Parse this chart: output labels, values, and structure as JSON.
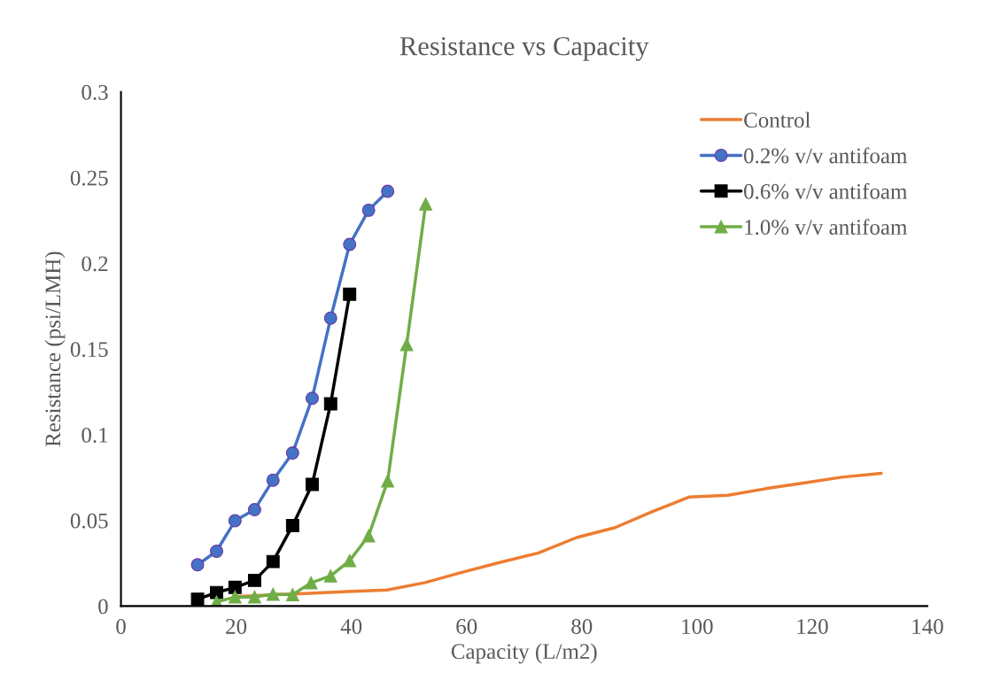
{
  "chart_data": {
    "type": "line",
    "title": "Resistance vs Capacity",
    "xlabel": "Capacity (L/m2)",
    "ylabel": "Resistance (psi/LMH)",
    "xlim": [
      0,
      140
    ],
    "xticks": [
      0,
      20,
      40,
      60,
      80,
      100,
      120,
      140
    ],
    "ylim": [
      0,
      0.3
    ],
    "yticks": [
      0,
      0.05,
      0.1,
      0.15,
      0.2,
      0.25,
      0.3
    ],
    "grid": false,
    "legend": "top right",
    "series": [
      {
        "name": "Control",
        "color": "#ed7d31",
        "marker": "none",
        "x": [
          19.6,
          26.1,
          32.7,
          39.3,
          46.2,
          52.8,
          59.3,
          65.7,
          72.5,
          79.1,
          85.8,
          92.2,
          98.6,
          105.4,
          111.9,
          118.7,
          125.1,
          132
        ],
        "values": [
          0.0055,
          0.0065,
          0.0075,
          0.0085,
          0.0094,
          0.0137,
          0.0198,
          0.0254,
          0.031,
          0.04,
          0.0458,
          0.055,
          0.0636,
          0.0647,
          0.0685,
          0.0719,
          0.0752,
          0.0775
        ]
      },
      {
        "name": "0.2% v/v antifoam",
        "color": "#4472c4",
        "marker": "circle",
        "x": [
          13.3,
          16.6,
          19.8,
          23.2,
          26.4,
          29.8,
          33.2,
          36.4,
          39.7,
          43.0,
          46.3
        ],
        "values": [
          0.0241,
          0.032,
          0.0498,
          0.0563,
          0.0735,
          0.0893,
          0.1213,
          0.168,
          0.211,
          0.231,
          0.242
        ]
      },
      {
        "name": "0.6% v/v antifoam",
        "color": "#000000",
        "marker": "square",
        "x": [
          13.3,
          16.6,
          19.8,
          23.2,
          26.4,
          29.8,
          33.2,
          36.4,
          39.7
        ],
        "values": [
          0.004,
          0.0079,
          0.0109,
          0.015,
          0.026,
          0.047,
          0.071,
          0.118,
          0.182
        ]
      },
      {
        "name": "1.0% v/v antifoam",
        "color": "#70ad47",
        "marker": "triangle",
        "x": [
          16.6,
          19.8,
          23.2,
          26.4,
          29.8,
          33.0,
          36.4,
          39.7,
          43.0,
          46.3,
          49.6,
          52.9
        ],
        "values": [
          0.0024,
          0.0053,
          0.0053,
          0.0069,
          0.0067,
          0.0136,
          0.0176,
          0.0265,
          0.041,
          0.073,
          0.1526,
          0.2346
        ]
      }
    ]
  }
}
